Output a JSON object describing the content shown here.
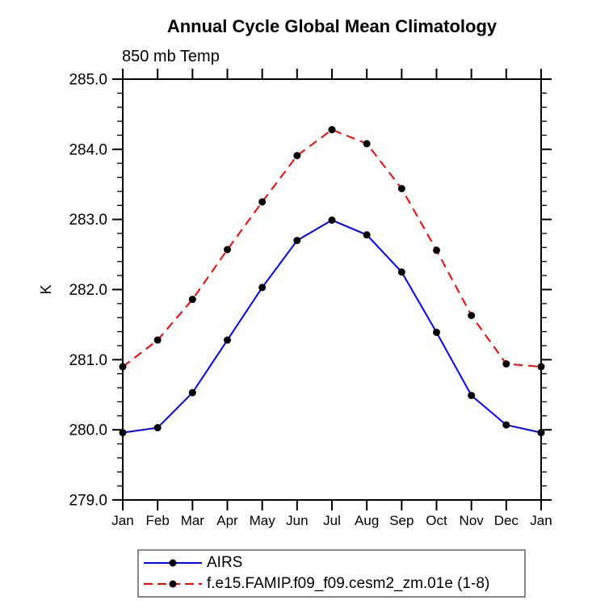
{
  "chart_data": {
    "type": "line",
    "title": "Annual Cycle Global Mean Climatology",
    "subtitle": "850 mb Temp",
    "xlabel": "",
    "ylabel": "K",
    "categories": [
      "Jan",
      "Feb",
      "Mar",
      "Apr",
      "May",
      "Jun",
      "Jul",
      "Aug",
      "Sep",
      "Oct",
      "Nov",
      "Dec",
      "Jan"
    ],
    "ylim": [
      279.0,
      285.0
    ],
    "ytick_major": 1.0,
    "ytick_minor": 0.2,
    "ytick_labels": [
      "279.0",
      "280.0",
      "281.0",
      "282.0",
      "283.0",
      "284.0",
      "285.0"
    ],
    "grid": false,
    "legend_position": "bottom",
    "marker": {
      "shape": "circle",
      "color": "#000000",
      "radius": 4.5
    },
    "axis_color": "#000000",
    "series": [
      {
        "name": "AIRS",
        "color": "#0000ff",
        "line_style": "solid",
        "values": [
          279.96,
          280.03,
          280.53,
          281.28,
          282.03,
          282.7,
          282.99,
          282.78,
          282.25,
          281.39,
          280.49,
          280.07,
          279.96
        ]
      },
      {
        "name": "f.e15.FAMIP.f09_f09.cesm2_zm.01e (1-8)",
        "color": "#ff0000",
        "line_style": "dashed",
        "values": [
          280.9,
          281.28,
          281.86,
          282.57,
          283.25,
          283.91,
          284.28,
          284.08,
          283.44,
          282.56,
          281.63,
          280.94,
          280.9
        ]
      }
    ]
  }
}
